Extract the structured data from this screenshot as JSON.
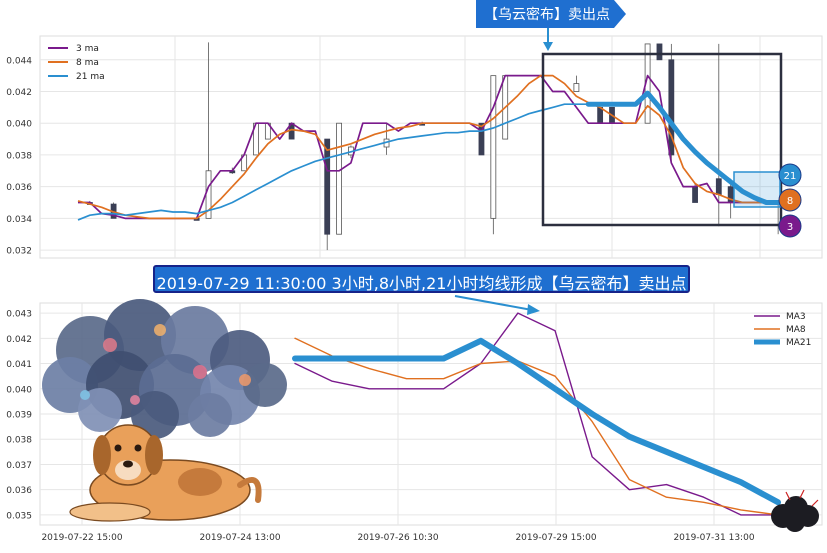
{
  "colors": {
    "ma3": "#7a1a8c",
    "ma8": "#e07020",
    "ma21": "#2a8fd0",
    "candle": "#3a3f55",
    "banner": "#1f6fd0",
    "box": "#2c2f3f"
  },
  "annotations": {
    "flag_text": "【乌云密布】卖出点",
    "banner_text": "2019-07-29 11:30:00 3小时,8小时,21小时均线形成【乌云密布】卖出点"
  },
  "chart_data": [
    {
      "type": "candlestick+line",
      "legend": [
        "3 ma",
        "8 ma",
        "21 ma"
      ],
      "legend_position": "top-left",
      "ylim": [
        0.0315,
        0.0455
      ],
      "yticks": [
        "0.032",
        "0.034",
        "0.036",
        "0.038",
        "0.040",
        "0.042",
        "0.044"
      ],
      "grid": true,
      "end_badges": [
        "21",
        "8",
        "3"
      ],
      "series": [
        {
          "name": "3 ma",
          "values": [
            0.035,
            0.035,
            0.0343,
            0.0342,
            0.034,
            0.034,
            0.034,
            0.034,
            0.034,
            0.034,
            0.034,
            0.036,
            0.037,
            0.037,
            0.038,
            0.04,
            0.04,
            0.039,
            0.04,
            0.0395,
            0.0395,
            0.037,
            0.037,
            0.0375,
            0.04,
            0.04,
            0.04,
            0.0395,
            0.04,
            0.04,
            0.04,
            0.04,
            0.04,
            0.04,
            0.0395,
            0.041,
            0.043,
            0.043,
            0.043,
            0.043,
            0.042,
            0.042,
            0.041,
            0.04,
            0.04,
            0.04,
            0.04,
            0.04,
            0.043,
            0.042,
            0.0375,
            0.036,
            0.036,
            0.0362,
            0.035,
            0.035,
            0.035,
            0.035,
            0.035,
            0.035,
            0.035
          ]
        },
        {
          "name": "8 ma",
          "values": [
            0.0351,
            0.0349,
            0.0347,
            0.0344,
            0.0342,
            0.0341,
            0.034,
            0.034,
            0.034,
            0.034,
            0.034,
            0.0345,
            0.0352,
            0.036,
            0.0368,
            0.0378,
            0.0387,
            0.0393,
            0.0396,
            0.0395,
            0.0393,
            0.0383,
            0.0385,
            0.0387,
            0.039,
            0.0393,
            0.0395,
            0.0397,
            0.0398,
            0.04,
            0.04,
            0.04,
            0.04,
            0.04,
            0.0398,
            0.0403,
            0.041,
            0.0417,
            0.0425,
            0.043,
            0.043,
            0.0425,
            0.0417,
            0.0413,
            0.041,
            0.0405,
            0.04,
            0.04,
            0.0411,
            0.0405,
            0.0392,
            0.0372,
            0.0362,
            0.0357,
            0.0355,
            0.0352,
            0.035,
            0.035,
            0.035,
            0.035,
            0.035
          ]
        },
        {
          "name": "21 ma",
          "values": [
            0.0339,
            0.0342,
            0.0343,
            0.0343,
            0.0342,
            0.0343,
            0.0344,
            0.0345,
            0.0344,
            0.0344,
            0.0343,
            0.0345,
            0.0347,
            0.035,
            0.0354,
            0.0358,
            0.0362,
            0.0366,
            0.037,
            0.0373,
            0.0376,
            0.0378,
            0.038,
            0.0382,
            0.0384,
            0.0386,
            0.0388,
            0.039,
            0.0391,
            0.0392,
            0.0393,
            0.0394,
            0.0394,
            0.0395,
            0.0395,
            0.0397,
            0.04,
            0.0403,
            0.0406,
            0.0408,
            0.041,
            0.0412,
            0.0412,
            0.0412,
            0.0412,
            0.0412,
            0.0412,
            0.0412,
            0.0419,
            0.041,
            0.04,
            0.039,
            0.0382,
            0.0375,
            0.0369,
            0.0363,
            0.0357,
            0.0353,
            0.035,
            0.035,
            0.035
          ]
        }
      ],
      "candles": [
        {
          "i": 1,
          "o": 0.035,
          "c": 0.035,
          "h": 0.0351,
          "l": 0.0349
        },
        {
          "i": 3,
          "o": 0.0349,
          "c": 0.034,
          "h": 0.035,
          "l": 0.034
        },
        {
          "i": 10,
          "o": 0.034,
          "c": 0.034,
          "h": 0.0341,
          "l": 0.0339
        },
        {
          "i": 11,
          "o": 0.034,
          "c": 0.037,
          "h": 0.0451,
          "l": 0.034
        },
        {
          "i": 13,
          "o": 0.037,
          "c": 0.037,
          "h": 0.0372,
          "l": 0.0368
        },
        {
          "i": 14,
          "o": 0.037,
          "c": 0.038,
          "h": 0.038,
          "l": 0.037
        },
        {
          "i": 15,
          "o": 0.038,
          "c": 0.04,
          "h": 0.04,
          "l": 0.038
        },
        {
          "i": 16,
          "o": 0.039,
          "c": 0.04,
          "h": 0.04,
          "l": 0.039
        },
        {
          "i": 18,
          "o": 0.04,
          "c": 0.039,
          "h": 0.04,
          "l": 0.039
        },
        {
          "i": 21,
          "o": 0.039,
          "c": 0.033,
          "h": 0.039,
          "l": 0.032
        },
        {
          "i": 22,
          "o": 0.033,
          "c": 0.04,
          "h": 0.04,
          "l": 0.033
        },
        {
          "i": 23,
          "o": 0.038,
          "c": 0.0385,
          "h": 0.0386,
          "l": 0.0378
        },
        {
          "i": 26,
          "o": 0.0385,
          "c": 0.039,
          "h": 0.04,
          "l": 0.038
        },
        {
          "i": 29,
          "o": 0.04,
          "c": 0.04,
          "h": 0.0401,
          "l": 0.0399
        },
        {
          "i": 34,
          "o": 0.04,
          "c": 0.038,
          "h": 0.04,
          "l": 0.038
        },
        {
          "i": 35,
          "o": 0.034,
          "c": 0.043,
          "h": 0.043,
          "l": 0.033
        },
        {
          "i": 36,
          "o": 0.039,
          "c": 0.043,
          "h": 0.043,
          "l": 0.039
        },
        {
          "i": 42,
          "o": 0.042,
          "c": 0.0425,
          "h": 0.043,
          "l": 0.042
        },
        {
          "i": 44,
          "o": 0.041,
          "c": 0.04,
          "h": 0.041,
          "l": 0.04
        },
        {
          "i": 45,
          "o": 0.041,
          "c": 0.04,
          "h": 0.041,
          "l": 0.04
        },
        {
          "i": 48,
          "o": 0.04,
          "c": 0.045,
          "h": 0.045,
          "l": 0.04
        },
        {
          "i": 49,
          "o": 0.045,
          "c": 0.044,
          "h": 0.045,
          "l": 0.044
        },
        {
          "i": 50,
          "o": 0.044,
          "c": 0.038,
          "h": 0.045,
          "l": 0.0375
        },
        {
          "i": 52,
          "o": 0.036,
          "c": 0.035,
          "h": 0.0362,
          "l": 0.035
        },
        {
          "i": 54,
          "o": 0.0365,
          "c": 0.0355,
          "h": 0.045,
          "l": 0.0335
        },
        {
          "i": 55,
          "o": 0.036,
          "c": 0.035,
          "h": 0.0365,
          "l": 0.034
        },
        {
          "i": 59,
          "o": 0.035,
          "c": 0.0349,
          "h": 0.0351,
          "l": 0.033
        }
      ]
    },
    {
      "type": "line",
      "legend": [
        "MA3",
        "MA8",
        "MA21"
      ],
      "legend_position": "top-right",
      "ylim": [
        0.0346,
        0.0434
      ],
      "yticks": [
        "0.035",
        "0.036",
        "0.037",
        "0.038",
        "0.039",
        "0.040",
        "0.041",
        "0.042",
        "0.043"
      ],
      "x_tick_labels": [
        "2019-07-22 15:00",
        "2019-07-24 13:00",
        "2019-07-26 10:30",
        "2019-07-29 15:00",
        "2019-07-31 13:00"
      ],
      "grid": true,
      "x": [
        0,
        1,
        2,
        3,
        4,
        5,
        6,
        7,
        8,
        9,
        10,
        11,
        12,
        13
      ],
      "series": [
        {
          "name": "MA3",
          "values": [
            0.041,
            0.0403,
            0.04,
            0.04,
            0.04,
            0.041,
            0.043,
            0.0423,
            0.0373,
            0.036,
            0.0362,
            0.0357,
            0.035,
            0.035
          ]
        },
        {
          "name": "MA8",
          "values": [
            0.042,
            0.0413,
            0.0408,
            0.0404,
            0.0404,
            0.041,
            0.0411,
            0.0405,
            0.0387,
            0.0364,
            0.0357,
            0.0355,
            0.0352,
            0.035
          ]
        },
        {
          "name": "MA21",
          "values": [
            0.0412,
            0.0412,
            0.0412,
            0.0412,
            0.0412,
            0.0419,
            0.041,
            0.04,
            0.039,
            0.0381,
            0.0375,
            0.0369,
            0.0363,
            0.0355
          ]
        }
      ]
    }
  ]
}
